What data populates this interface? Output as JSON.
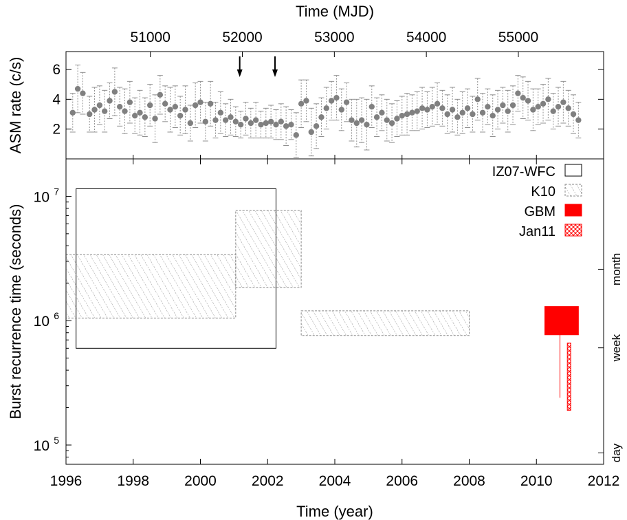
{
  "chart_data": [
    {
      "type": "scatter",
      "ylabel": "ASM rate (c/s)",
      "x2label": "Time (MJD)",
      "ylim": [
        0,
        7.2
      ],
      "yticks": [
        2,
        4,
        6
      ],
      "x2ticks": [
        51000,
        52000,
        53000,
        54000,
        55000
      ],
      "xlim_year": [
        1996,
        2012
      ],
      "marker_color": "#808080",
      "errorbar_style": "dotted",
      "arrows_year": [
        2001.17,
        2002.22
      ],
      "series": [
        {
          "x": [
            1996.2,
            1996.35,
            1996.5,
            1996.7,
            1996.85,
            1997.0,
            1997.15,
            1997.3,
            1997.45,
            1997.6,
            1997.75,
            1997.9,
            1998.05,
            1998.2,
            1998.35,
            1998.5,
            1998.65,
            1998.8,
            1998.95,
            1999.1,
            1999.25,
            1999.4,
            1999.55,
            1999.7,
            1999.85,
            2000.0,
            2000.15,
            2000.3,
            2000.45,
            2000.6,
            2000.75,
            2000.9,
            2001.05,
            2001.2,
            2001.35,
            2001.5,
            2001.65,
            2001.8,
            2001.95,
            2002.1,
            2002.25,
            2002.4,
            2002.55,
            2002.7,
            2002.85,
            2003.0,
            2003.15,
            2003.3,
            2003.45,
            2003.6,
            2003.75,
            2003.9,
            2004.05,
            2004.2,
            2004.35,
            2004.5,
            2004.65,
            2004.8,
            2004.95,
            2005.1,
            2005.25,
            2005.4,
            2005.55,
            2005.7,
            2005.85,
            2006.0,
            2006.15,
            2006.3,
            2006.45,
            2006.6,
            2006.75,
            2006.9,
            2007.05,
            2007.2,
            2007.35,
            2007.5,
            2007.65,
            2007.8,
            2007.95,
            2008.1,
            2008.25,
            2008.4,
            2008.55,
            2008.7,
            2008.85,
            2009.0,
            2009.15,
            2009.3,
            2009.45,
            2009.6,
            2009.75,
            2009.9,
            2010.05,
            2010.2,
            2010.35,
            2010.5,
            2010.65,
            2010.8,
            2010.95,
            2011.1,
            2011.25
          ],
          "y": [
            3.1,
            4.7,
            4.4,
            3.0,
            3.3,
            3.6,
            3.2,
            3.9,
            4.5,
            3.5,
            3.2,
            3.8,
            2.9,
            3.1,
            2.8,
            3.6,
            2.7,
            4.3,
            3.7,
            3.3,
            3.5,
            2.9,
            3.3,
            2.4,
            3.6,
            3.8,
            2.5,
            3.7,
            2.6,
            3.1,
            2.6,
            2.8,
            2.5,
            2.3,
            2.7,
            2.4,
            2.6,
            2.3,
            2.4,
            2.5,
            2.3,
            2.5,
            2.2,
            2.3,
            1.6,
            3.7,
            3.9,
            1.8,
            2.2,
            2.8,
            3.4,
            3.9,
            4.1,
            3.3,
            3.8,
            2.6,
            2.4,
            2.6,
            2.3,
            3.5,
            2.8,
            3.1,
            2.6,
            2.4,
            2.7,
            2.9,
            3.0,
            3.1,
            3.2,
            3.4,
            3.3,
            3.5,
            3.7,
            3.4,
            3.0,
            3.3,
            2.8,
            3.1,
            3.4,
            3.0,
            4.0,
            3.1,
            3.5,
            2.9,
            3.3,
            3.6,
            3.2,
            3.6,
            4.4,
            4.1,
            3.9,
            3.3,
            3.5,
            3.7,
            4.0,
            3.2,
            3.5,
            3.8,
            3.4,
            3.0,
            2.6
          ],
          "yerr": [
            1.3,
            1.6,
            1.4,
            1.2,
            1.5,
            1.3,
            1.4,
            1.2,
            1.6,
            1.3,
            1.5,
            1.4,
            1.2,
            1.5,
            1.3,
            1.4,
            1.6,
            1.3,
            1.2,
            1.5,
            1.4,
            1.3,
            1.6,
            1.2,
            1.5,
            1.4,
            1.3,
            1.5,
            1.2,
            1.4,
            1.1,
            1.2,
            1.0,
            0.9,
            1.1,
            1.0,
            1.2,
            0.9,
            1.0,
            1.1,
            1.0,
            1.2,
            1.3,
            1.0,
            1.5,
            1.6,
            1.4,
            1.6,
            1.5,
            1.3,
            1.4,
            1.3,
            1.5,
            1.4,
            1.3,
            1.4,
            1.6,
            1.5,
            1.7,
            1.4,
            1.3,
            1.2,
            1.4,
            1.3,
            1.2,
            1.3,
            1.4,
            1.2,
            1.3,
            1.4,
            1.2,
            1.3,
            1.4,
            1.2,
            1.3,
            1.5,
            1.2,
            1.4,
            1.3,
            1.2,
            1.4,
            1.3,
            1.2,
            1.4,
            1.3,
            1.2,
            1.4,
            1.3,
            1.2,
            1.4,
            1.3,
            1.4,
            1.2,
            1.3,
            1.4,
            1.2,
            1.3,
            1.4,
            1.2,
            1.3,
            1.2
          ]
        }
      ]
    },
    {
      "type": "bar",
      "ylabel": "Burst recurrence time (seconds)",
      "xlabel": "Time (year)",
      "yscale": "log",
      "ylim": [
        70000,
        20000000
      ],
      "xlim": [
        1996,
        2012
      ],
      "xticks": [
        1996,
        1998,
        2000,
        2002,
        2004,
        2006,
        2008,
        2010,
        2012
      ],
      "yticks": [
        100000,
        1000000,
        10000000
      ],
      "ytick_labels": [
        {
          "base": "10",
          "exp": "5"
        },
        {
          "base": "10",
          "exp": "6"
        },
        {
          "base": "10",
          "exp": "7"
        }
      ],
      "right_labels": [
        {
          "text": "month",
          "seconds": 2592000
        },
        {
          "text": "week",
          "seconds": 604800
        },
        {
          "text": "day",
          "seconds": 86400
        }
      ],
      "legend_position": "top-right",
      "series": [
        {
          "name": "IZ07-WFC",
          "style": "outline",
          "color": "#000000",
          "boxes": [
            {
              "x0": 1996.3,
              "x1": 2002.25,
              "y0": 600000,
              "y1": 11500000
            }
          ]
        },
        {
          "name": "K10",
          "style": "hatch-gray",
          "color": "#888888",
          "boxes": [
            {
              "x0": 1996.0,
              "x1": 2001.05,
              "y0": 1050000,
              "y1": 3400000
            },
            {
              "x0": 2001.05,
              "x1": 2003.0,
              "y0": 1850000,
              "y1": 7700000
            },
            {
              "x0": 2003.0,
              "x1": 2008.0,
              "y0": 760000,
              "y1": 1200000
            }
          ]
        },
        {
          "name": "GBM",
          "style": "solid",
          "color": "#ff0000",
          "boxes": [
            {
              "x0": 2010.25,
              "x1": 2011.25,
              "y0": 770000,
              "y1": 1300000
            }
          ],
          "lines": [
            {
              "x": 2010.7,
              "y0": 240000,
              "y1": 770000
            }
          ]
        },
        {
          "name": "Jan11",
          "style": "crosshatch-red",
          "color": "#ff0000",
          "boxes": [
            {
              "x0": 2010.92,
              "x1": 2011.02,
              "y0": 190000,
              "y1": 660000
            }
          ]
        }
      ]
    }
  ]
}
